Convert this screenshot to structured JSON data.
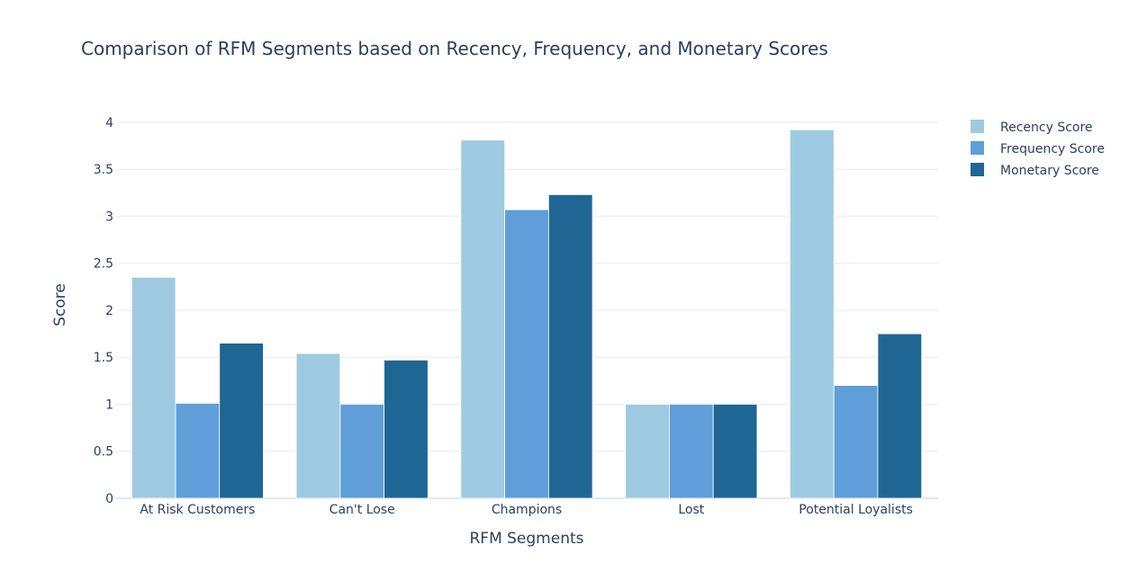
{
  "chart_data": {
    "type": "bar",
    "title": "Comparison of RFM Segments based on Recency, Frequency, and Monetary Scores",
    "xlabel": "RFM Segments",
    "ylabel": "Score",
    "ylim": [
      0,
      4.2
    ],
    "yticks": [
      0,
      0.5,
      1,
      1.5,
      2,
      2.5,
      3,
      3.5,
      4
    ],
    "ytick_labels": [
      "0",
      "0.5",
      "1",
      "1.5",
      "2",
      "2.5",
      "3",
      "3.5",
      "4"
    ],
    "grid": true,
    "legend_position": "top-right",
    "categories": [
      "At Risk Customers",
      "Can't Lose",
      "Champions",
      "Lost",
      "Potential Loyalists"
    ],
    "series": [
      {
        "name": "Recency Score",
        "color": "#9ecae1",
        "values": [
          2.35,
          1.54,
          3.81,
          1.0,
          3.92
        ]
      },
      {
        "name": "Frequency Score",
        "color": "#5f9ed9",
        "values": [
          1.01,
          1.0,
          3.07,
          1.0,
          1.2
        ]
      },
      {
        "name": "Monetary Score",
        "color": "#1f6694",
        "values": [
          1.65,
          1.47,
          3.23,
          1.0,
          1.75
        ]
      }
    ]
  }
}
